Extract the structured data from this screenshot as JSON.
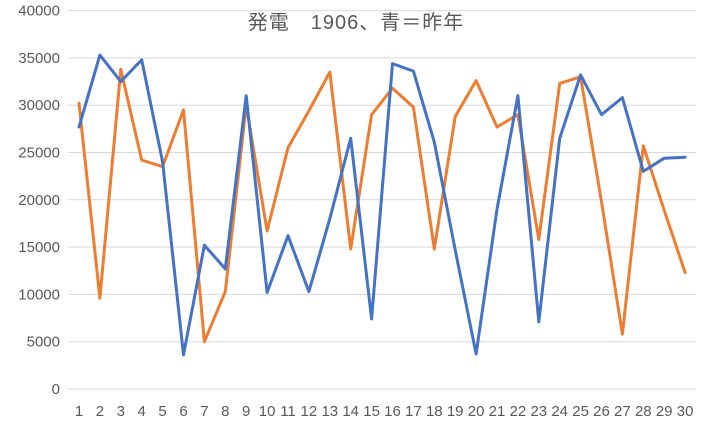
{
  "title": "発電　1906、青＝昨年",
  "colors": {
    "series_blue": "#4472C4",
    "series_orange": "#ED7D31",
    "gridline": "#D9D9D9",
    "axis_text": "#595959",
    "title_text": "#595959",
    "background": "#FFFFFF"
  },
  "axes": {
    "y_labels": [
      "40000",
      "35000",
      "30000",
      "25000",
      "20000",
      "15000",
      "10000",
      "5000",
      "0"
    ],
    "x_labels": [
      "1",
      "2",
      "3",
      "4",
      "5",
      "6",
      "7",
      "8",
      "9",
      "10",
      "11",
      "12",
      "13",
      "14",
      "15",
      "16",
      "17",
      "18",
      "19",
      "20",
      "21",
      "22",
      "23",
      "24",
      "25",
      "26",
      "27",
      "28",
      "29",
      "30"
    ]
  },
  "chart_data": {
    "type": "line",
    "title": "発電　1906、青＝昨年",
    "xlabel": "",
    "ylabel": "",
    "ylim": [
      0,
      40000
    ],
    "ytick_step": 5000,
    "grid": "horizontal",
    "legend": "none",
    "categories": [
      1,
      2,
      3,
      4,
      5,
      6,
      7,
      8,
      9,
      10,
      11,
      12,
      13,
      14,
      15,
      16,
      17,
      18,
      19,
      20,
      21,
      22,
      23,
      24,
      25,
      26,
      27,
      28,
      29,
      30
    ],
    "series": [
      {
        "name": "1906",
        "color": "#ED7D31",
        "values": [
          30200,
          9600,
          33800,
          24200,
          23500,
          29500,
          5000,
          10300,
          30000,
          16700,
          25500,
          29400,
          33500,
          14800,
          29000,
          31800,
          29800,
          14800,
          28800,
          32600,
          27700,
          29000,
          15800,
          32300,
          33000,
          19800,
          5800,
          25700,
          18900,
          12300
        ]
      },
      {
        "name": "昨年",
        "color": "#4472C4",
        "values": [
          27700,
          35300,
          32500,
          34800,
          24000,
          3600,
          15200,
          12700,
          31000,
          10200,
          16200,
          10300,
          18000,
          26500,
          7400,
          34400,
          33600,
          26100,
          14700,
          3700,
          19000,
          31000,
          7100,
          26500,
          33200,
          29000,
          30800,
          23000,
          24400,
          24500
        ]
      }
    ]
  }
}
